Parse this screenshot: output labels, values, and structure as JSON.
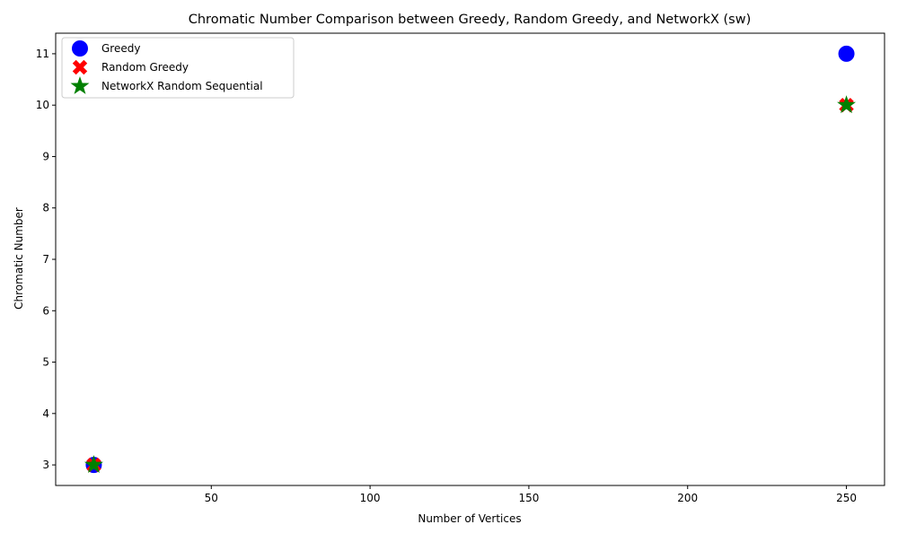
{
  "chart_data": {
    "type": "scatter",
    "title": "Chromatic Number Comparison between Greedy, Random Greedy, and NetworkX (sw)",
    "xlabel": "Number of Vertices",
    "ylabel": "Chromatic Number",
    "xlim": [
      1,
      262
    ],
    "ylim": [
      2.6,
      11.4
    ],
    "xticks": [
      50,
      100,
      150,
      200,
      250
    ],
    "yticks": [
      3,
      4,
      5,
      6,
      7,
      8,
      9,
      10,
      11
    ],
    "grid": false,
    "legend_position": "upper-left",
    "series": [
      {
        "name": "Greedy",
        "marker": "circle",
        "color": "#0000ff",
        "x": [
          13,
          250
        ],
        "y": [
          3,
          11
        ]
      },
      {
        "name": "Random Greedy",
        "marker": "x-filled",
        "color": "#ff0000",
        "x": [
          13,
          250
        ],
        "y": [
          3,
          10
        ]
      },
      {
        "name": "NetworkX Random Sequential",
        "marker": "star",
        "color": "#008000",
        "x": [
          13,
          250
        ],
        "y": [
          3,
          10
        ]
      }
    ]
  }
}
